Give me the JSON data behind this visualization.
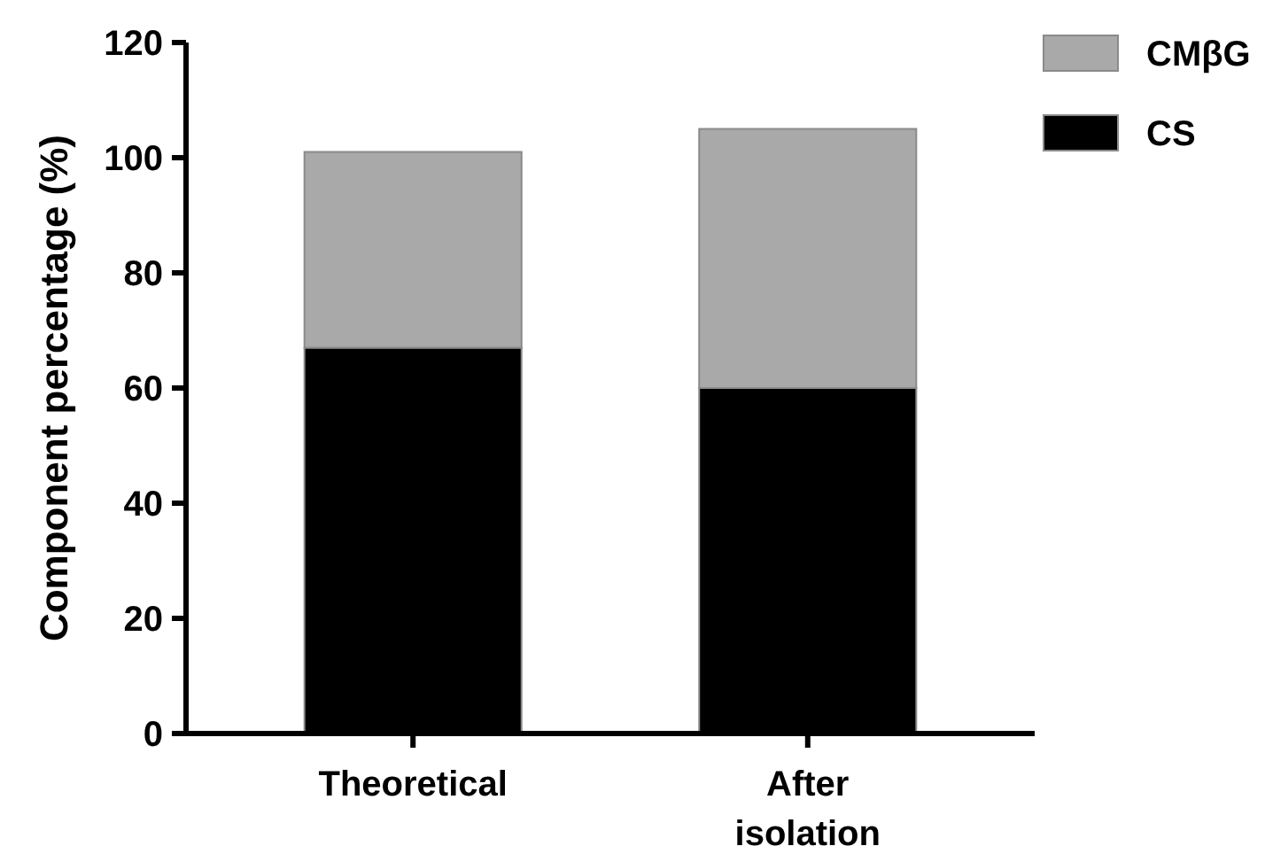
{
  "chart_data": {
    "type": "bar",
    "stacked": true,
    "ylabel": "Component percentage (%)",
    "categories": [
      "Theoretical",
      "After isolation"
    ],
    "series": [
      {
        "name": "CS",
        "color": "#000000",
        "values": [
          67,
          60
        ]
      },
      {
        "name": "CMβG",
        "color": "#a9a9a9",
        "values": [
          34,
          45
        ]
      }
    ],
    "ylim": [
      0,
      120
    ],
    "yticks": [
      0,
      20,
      40,
      60,
      80,
      100,
      120
    ],
    "legend": "top right",
    "grid": false
  }
}
